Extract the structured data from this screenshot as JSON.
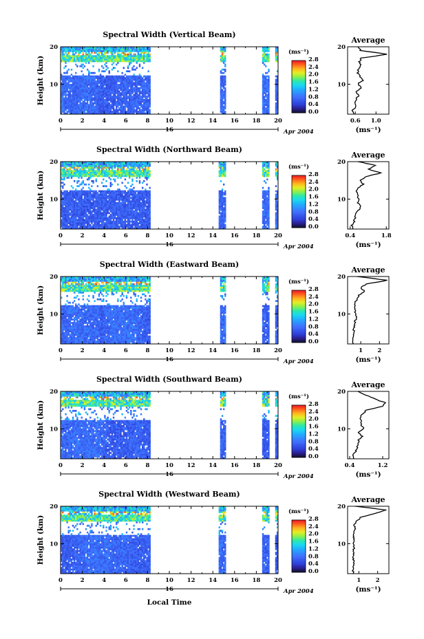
{
  "figure": {
    "xlabel": "Local Time",
    "date_label": "Apr 2004",
    "day_label": "16",
    "ylabel": "Height (km)",
    "colorbar_unit": "(ms⁻¹)",
    "average_title": "Average",
    "average_xlabel": "(ms⁻¹)"
  },
  "chart_data": [
    {
      "type": "heatmap",
      "title": "Spectral Width (Vertical Beam)",
      "xlabel": "Local Time",
      "ylabel": "Height (km)",
      "xlim": [
        0,
        20
      ],
      "ylim": [
        2,
        20
      ],
      "x_ticks": [
        0,
        2,
        4,
        6,
        8,
        10,
        12,
        14,
        16,
        18,
        20
      ],
      "y_ticks": [
        10,
        20
      ],
      "data_coverage_hours": [
        [
          0,
          8.2
        ],
        [
          14.7,
          15.2
        ],
        [
          18.6,
          19.2
        ],
        [
          19.8,
          20
        ]
      ],
      "colorbar": {
        "label": "(ms⁻¹)",
        "ticks": [
          "0.0",
          "0.4",
          "0.8",
          "1.2",
          "1.6",
          "2.0",
          "2.4",
          "2.8"
        ],
        "range": [
          0,
          2.8
        ]
      },
      "average_profile": {
        "title": "Average",
        "xlabel": "(ms⁻¹)",
        "xlim": [
          0.45,
          1.25
        ],
        "x_ticks": [
          "0.6",
          "1.0"
        ],
        "x_tick_values": [
          0.6,
          1.0
        ],
        "y_ticks": [
          10,
          20
        ],
        "height": [
          2,
          3,
          4,
          5,
          6,
          7,
          8,
          9,
          10,
          11,
          12,
          13,
          14,
          15,
          16,
          17,
          18,
          19,
          20
        ],
        "value": [
          0.57,
          0.55,
          0.6,
          0.6,
          0.62,
          0.66,
          0.62,
          0.72,
          0.65,
          0.74,
          0.7,
          0.64,
          0.66,
          0.7,
          0.68,
          0.72,
          1.22,
          0.7,
          0.65
        ]
      }
    },
    {
      "type": "heatmap",
      "title": "Spectral Width (Northward Beam)",
      "xlabel": "Local Time",
      "ylabel": "Height (km)",
      "xlim": [
        0,
        20
      ],
      "ylim": [
        2,
        20
      ],
      "x_ticks": [
        0,
        2,
        4,
        6,
        8,
        10,
        12,
        14,
        16,
        18,
        20
      ],
      "y_ticks": [
        10,
        20
      ],
      "data_coverage_hours": [
        [
          0,
          8.2
        ],
        [
          14.6,
          15.2
        ],
        [
          18.6,
          19.2
        ],
        [
          19.8,
          20
        ]
      ],
      "colorbar": {
        "label": "(ms⁻¹)",
        "ticks": [
          "0.0",
          "0.4",
          "0.8",
          "1.2",
          "1.6",
          "2.0",
          "2.4",
          "2.8"
        ],
        "range": [
          0,
          2.8
        ]
      },
      "average_profile": {
        "title": "Average",
        "xlabel": "(ms⁻¹)",
        "xlim": [
          0.3,
          1.9
        ],
        "x_ticks": [
          "0.4",
          "1.8"
        ],
        "x_tick_values": [
          0.4,
          1.8
        ],
        "height": [
          2,
          3,
          4,
          5,
          6,
          7,
          8,
          9,
          10,
          11,
          12,
          13,
          14,
          15,
          16,
          17,
          18,
          19,
          20
        ],
        "value": [
          0.5,
          0.46,
          0.55,
          0.6,
          0.6,
          0.72,
          0.8,
          0.7,
          0.75,
          0.68,
          0.65,
          0.7,
          0.9,
          0.8,
          1.0,
          1.6,
          1.1,
          1.4,
          0.7
        ]
      }
    },
    {
      "type": "heatmap",
      "title": "Spectral Width (Eastward Beam)",
      "xlabel": "Local Time",
      "ylabel": "Height (km)",
      "xlim": [
        0,
        20
      ],
      "ylim": [
        2,
        20
      ],
      "x_ticks": [
        0,
        2,
        4,
        6,
        8,
        10,
        12,
        14,
        16,
        18,
        20
      ],
      "y_ticks": [
        10,
        20
      ],
      "data_coverage_hours": [
        [
          0,
          8.2
        ],
        [
          14.7,
          15.2
        ],
        [
          18.6,
          19.2
        ],
        [
          19.8,
          20
        ]
      ],
      "colorbar": {
        "label": "(ms⁻¹)",
        "ticks": [
          "0.0",
          "0.4",
          "0.8",
          "1.2",
          "1.6",
          "2.0",
          "2.4",
          "2.8"
        ],
        "range": [
          0,
          2.8
        ]
      },
      "average_profile": {
        "title": "Average",
        "xlabel": "(ms⁻¹)",
        "xlim": [
          0.3,
          2.5
        ],
        "x_ticks": [
          "1",
          "2"
        ],
        "x_tick_values": [
          1,
          2
        ],
        "height": [
          2,
          3,
          4,
          5,
          6,
          7,
          8,
          9,
          10,
          11,
          12,
          13,
          14,
          15,
          16,
          17,
          18,
          19,
          20
        ],
        "value": [
          0.6,
          0.58,
          0.62,
          0.65,
          0.62,
          0.7,
          0.68,
          0.8,
          0.7,
          0.72,
          0.68,
          0.7,
          0.8,
          0.9,
          1.2,
          1.0,
          1.3,
          2.4,
          0.8
        ]
      }
    },
    {
      "type": "heatmap",
      "title": "Spectral Width (Southward Beam)",
      "xlabel": "Local Time",
      "ylabel": "Height (km)",
      "xlim": [
        0,
        20
      ],
      "ylim": [
        2,
        20
      ],
      "x_ticks": [
        0,
        2,
        4,
        6,
        8,
        10,
        12,
        14,
        16,
        18,
        20
      ],
      "y_ticks": [
        10,
        20
      ],
      "data_coverage_hours": [
        [
          0,
          8.2
        ],
        [
          14.7,
          15.2
        ],
        [
          18.6,
          19.2
        ],
        [
          19.8,
          20
        ]
      ],
      "colorbar": {
        "label": "(ms⁻¹)",
        "ticks": [
          "0.0",
          "0.4",
          "0.8",
          "1.2",
          "1.6",
          "2.0",
          "2.4",
          "2.8"
        ],
        "range": [
          0,
          2.8
        ]
      },
      "average_profile": {
        "title": "Average",
        "xlabel": "(ms⁻¹)",
        "xlim": [
          0.35,
          1.35
        ],
        "x_ticks": [
          "0.4",
          "1.2"
        ],
        "x_tick_values": [
          0.4,
          1.2
        ],
        "height": [
          2,
          3,
          4,
          5,
          6,
          7,
          8,
          9,
          10,
          11,
          12,
          13,
          14,
          15,
          16,
          17,
          18,
          19,
          20
        ],
        "value": [
          0.5,
          0.48,
          0.55,
          0.58,
          0.6,
          0.62,
          0.7,
          0.6,
          0.75,
          0.66,
          0.7,
          0.65,
          0.72,
          0.8,
          1.2,
          1.25,
          1.0,
          0.8,
          0.6
        ]
      }
    },
    {
      "type": "heatmap",
      "title": "Spectral Width (Westward Beam)",
      "xlabel": "Local Time",
      "ylabel": "Height (km)",
      "xlim": [
        0,
        20
      ],
      "ylim": [
        2,
        20
      ],
      "x_ticks": [
        0,
        2,
        4,
        6,
        8,
        10,
        12,
        14,
        16,
        18,
        20
      ],
      "y_ticks": [
        10,
        20
      ],
      "data_coverage_hours": [
        [
          0,
          8.2
        ],
        [
          14.6,
          15.2
        ],
        [
          18.6,
          19.2
        ],
        [
          19.8,
          20
        ]
      ],
      "colorbar": {
        "label": "(ms⁻¹)",
        "ticks": [
          "0.0",
          "0.4",
          "0.8",
          "1.2",
          "1.6",
          "2.0",
          "2.4",
          "2.8"
        ],
        "range": [
          0,
          2.8
        ]
      },
      "average_profile": {
        "title": "Average",
        "xlabel": "(ms⁻¹)",
        "xlim": [
          0.4,
          2.6
        ],
        "x_ticks": [
          "1",
          "2"
        ],
        "x_tick_values": [
          1,
          2
        ],
        "height": [
          2,
          3,
          4,
          5,
          6,
          7,
          8,
          9,
          10,
          11,
          12,
          13,
          14,
          15,
          16,
          17,
          18,
          19,
          20
        ],
        "value": [
          0.7,
          0.68,
          0.72,
          0.75,
          0.7,
          0.72,
          0.7,
          0.75,
          0.7,
          0.72,
          0.74,
          0.7,
          0.8,
          0.75,
          0.9,
          1.1,
          1.8,
          2.5,
          0.8
        ]
      }
    }
  ]
}
